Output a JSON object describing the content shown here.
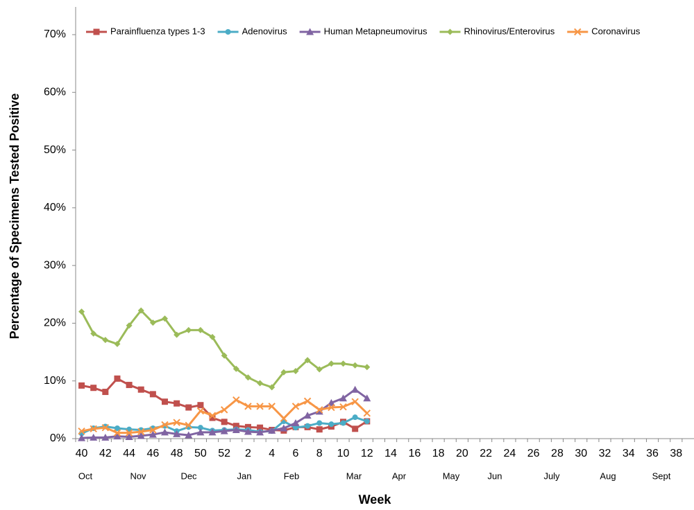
{
  "chart_data": {
    "type": "line",
    "y_axis_label": "Percentage of Specimens Tested Positive",
    "x_axis_label": "Week",
    "categories": [
      "40",
      null,
      "42",
      null,
      "44",
      null,
      "46",
      null,
      "48",
      null,
      "50",
      null,
      "52",
      null,
      "2",
      null,
      "4",
      null,
      "6",
      null,
      "8",
      null,
      "10",
      null,
      "12",
      null,
      "14",
      null,
      "16",
      null,
      "18",
      null,
      "20",
      null,
      "22",
      null,
      "24",
      null,
      "26",
      null,
      "28",
      null,
      "30",
      null,
      "32",
      null,
      "34",
      null,
      "36",
      null,
      "38",
      null
    ],
    "month_labels": [
      "Oct",
      "Nov",
      "Dec",
      "Jan",
      "Feb",
      "Mar",
      "Apr",
      "May",
      "Jun",
      "July",
      "Aug",
      "Sept"
    ],
    "ylim": [
      0,
      70
    ],
    "yticks": [
      {
        "value": 0,
        "label": "0%"
      },
      {
        "value": 10,
        "label": "10%"
      },
      {
        "value": 20,
        "label": "20%"
      },
      {
        "value": 30,
        "label": "30%"
      },
      {
        "value": 40,
        "label": "40%"
      },
      {
        "value": 50,
        "label": "50%"
      },
      {
        "value": 60,
        "label": "60%"
      },
      {
        "value": 70,
        "label": "70%"
      }
    ],
    "grid": false,
    "legend": "top",
    "series": [
      {
        "name": "Parainfluenza types 1-3",
        "color": "#c0504d",
        "marker": "square",
        "values": [
          9.2,
          8.8,
          8.1,
          10.4,
          9.3,
          8.5,
          7.7,
          6.4,
          6.1,
          5.4,
          5.8,
          3.6,
          2.9,
          2.2,
          2.0,
          1.9,
          1.5,
          1.4,
          2.0,
          2.0,
          1.6,
          2.1,
          2.9,
          1.7,
          3.0,
          null,
          null,
          null,
          null,
          null,
          null,
          null,
          null,
          null,
          null,
          null,
          null,
          null,
          null,
          null,
          null,
          null,
          null,
          null,
          null,
          null,
          null,
          null,
          null,
          null,
          null,
          null
        ]
      },
      {
        "name": "Adenovirus",
        "color": "#4bacc6",
        "marker": "circle",
        "values": [
          0.9,
          1.8,
          2.1,
          1.8,
          1.6,
          1.5,
          1.8,
          2.2,
          1.3,
          2.0,
          1.9,
          1.4,
          1.5,
          1.6,
          1.5,
          1.2,
          1.3,
          3.0,
          1.9,
          2.2,
          2.7,
          2.5,
          2.7,
          3.7,
          3.0,
          null,
          null,
          null,
          null,
          null,
          null,
          null,
          null,
          null,
          null,
          null,
          null,
          null,
          null,
          null,
          null,
          null,
          null,
          null,
          null,
          null,
          null,
          null,
          null,
          null,
          null,
          null
        ]
      },
      {
        "name": "Human Metapneumovirus",
        "color": "#8064a2",
        "marker": "triangle",
        "values": [
          0.1,
          0.2,
          0.2,
          0.4,
          0.3,
          0.5,
          0.7,
          1.1,
          0.8,
          0.6,
          1.1,
          1.1,
          1.3,
          1.5,
          1.2,
          1.1,
          1.4,
          1.8,
          2.7,
          4.0,
          4.7,
          6.2,
          7.0,
          8.5,
          7.0,
          null,
          null,
          null,
          null,
          null,
          null,
          null,
          null,
          null,
          null,
          null,
          null,
          null,
          null,
          null,
          null,
          null,
          null,
          null,
          null,
          null,
          null,
          null,
          null,
          null,
          null,
          null
        ]
      },
      {
        "name": "Rhinovirus/Enterovirus",
        "color": "#9bbb59",
        "marker": "diamond",
        "values": [
          22.0,
          18.2,
          17.1,
          16.4,
          19.6,
          22.2,
          20.1,
          20.8,
          18.0,
          18.8,
          18.8,
          17.6,
          14.4,
          12.1,
          10.6,
          9.6,
          8.9,
          11.5,
          11.7,
          13.6,
          12.0,
          13.0,
          13.0,
          12.7,
          12.4,
          null,
          null,
          null,
          null,
          null,
          null,
          null,
          null,
          null,
          null,
          null,
          null,
          null,
          null,
          null,
          null,
          null,
          null,
          null,
          null,
          null,
          null,
          null,
          null,
          null,
          null,
          null
        ]
      },
      {
        "name": "Coronavirus",
        "color": "#f79646",
        "marker": "x",
        "values": [
          1.3,
          1.7,
          1.9,
          1.0,
          1.0,
          1.2,
          1.5,
          2.4,
          2.8,
          2.3,
          4.8,
          4.0,
          5.0,
          6.7,
          5.6,
          5.6,
          5.6,
          3.5,
          5.6,
          6.5,
          5.0,
          5.4,
          5.5,
          6.4,
          4.4,
          null,
          null,
          null,
          null,
          null,
          null,
          null,
          null,
          null,
          null,
          null,
          null,
          null,
          null,
          null,
          null,
          null,
          null,
          null,
          null,
          null,
          null,
          null,
          null,
          null,
          null,
          null
        ]
      }
    ]
  }
}
